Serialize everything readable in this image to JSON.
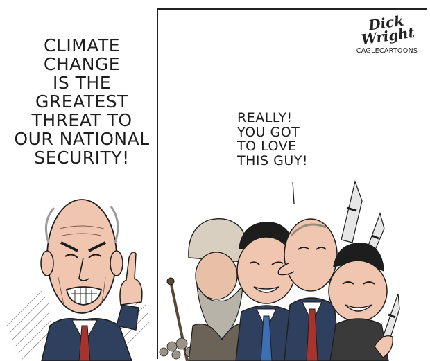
{
  "left_panel": {
    "speech_lines": [
      "CLIMATE",
      "CHANGE",
      "IS THE",
      "GREATEST",
      "THREAT TO",
      "OUR NATIONAL",
      "SECURITY!"
    ]
  },
  "right_panel": {
    "speech_lines": [
      "REALLY!",
      "YOU GOT",
      "TO LOVE",
      "THIS GUY!"
    ],
    "signature": {
      "name": "Dick Wright",
      "source": "CAGLECARTOONS"
    }
  },
  "colors": {
    "ink": "#1d1d1d",
    "skin": "#f1c6b0",
    "suit": "#2f3f5e",
    "tie_red": "#a8322c",
    "tie_blue": "#3c6fb4",
    "beard_gray": "#b8b3a8",
    "turban": "#d8cfc0",
    "missile": "#e6e6e6"
  }
}
